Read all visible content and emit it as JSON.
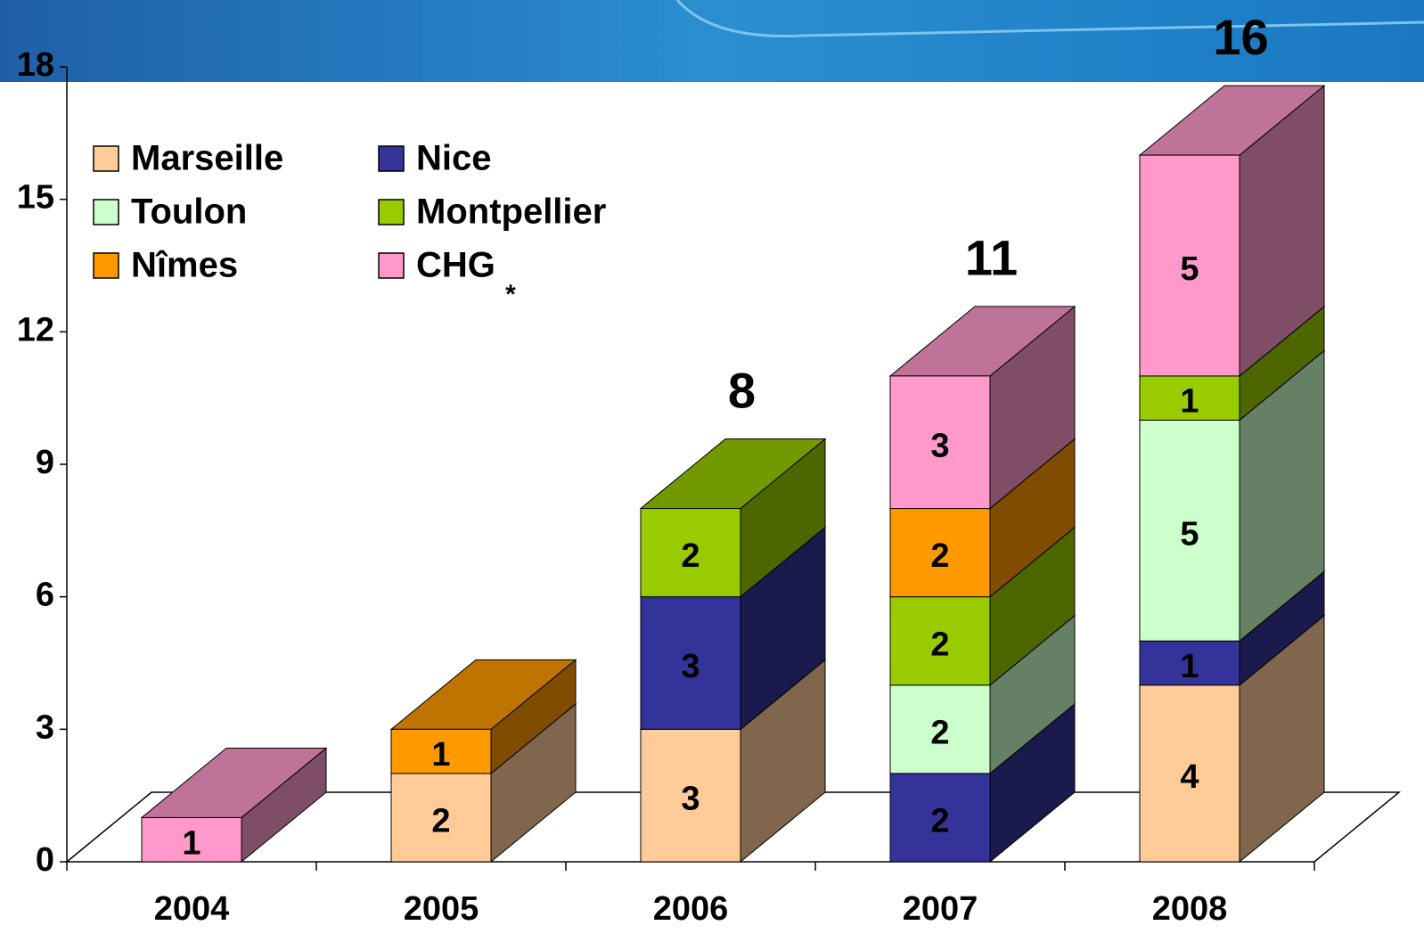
{
  "chart_data": {
    "type": "bar3d_stacked",
    "categories": [
      "2004",
      "2005",
      "2006",
      "2007",
      "2008"
    ],
    "series": [
      {
        "name": "Marseille",
        "color": "#ffcc99",
        "values": [
          null,
          2,
          3,
          null,
          4
        ]
      },
      {
        "name": "Nice",
        "color": "#333399",
        "values": [
          null,
          null,
          3,
          2,
          1
        ]
      },
      {
        "name": "Toulon",
        "color": "#ccffcc",
        "values": [
          null,
          null,
          null,
          2,
          5
        ]
      },
      {
        "name": "Montpellier",
        "color": "#99cc00",
        "values": [
          null,
          null,
          2,
          2,
          1
        ]
      },
      {
        "name": "Nîmes",
        "color": "#ff9900",
        "values": [
          null,
          1,
          null,
          2,
          null
        ]
      },
      {
        "name": "CHG",
        "color": "#ff99cc",
        "values": [
          1,
          null,
          null,
          3,
          5
        ]
      }
    ],
    "totals": [
      null,
      null,
      8,
      11,
      16
    ],
    "annotation": "*",
    "ylim": [
      0,
      18
    ],
    "yticks": [
      0,
      3,
      6,
      9,
      12,
      15,
      18
    ]
  }
}
